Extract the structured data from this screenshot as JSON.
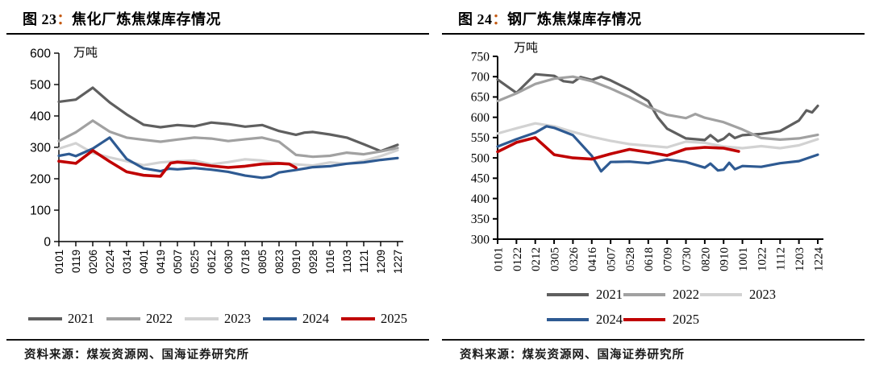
{
  "figures": [
    {
      "title_prefix": "图 23",
      "title_colon": "：",
      "title_text": "焦化厂炼焦煤库存情况",
      "source": "资料来源：煤炭资源网、国海证券研究所",
      "legend_rows": [
        [
          "2021",
          "2022",
          "2023",
          "2024",
          "2025"
        ]
      ],
      "chart_data": {
        "type": "line",
        "title": "焦化厂炼焦煤库存情况",
        "unit": "万吨",
        "ylim": [
          0,
          600
        ],
        "ystep": 100,
        "grid": false,
        "legend_position": "bottom",
        "x_tick_labels": [
          "0101",
          "0119",
          "0206",
          "0224",
          "0314",
          "0401",
          "0419",
          "0507",
          "0525",
          "0612",
          "0630",
          "0718",
          "0805",
          "0823",
          "0910",
          "0928",
          "1016",
          "1103",
          "1121",
          "1209",
          "1227"
        ],
        "series": [
          {
            "name": "2021",
            "color": "#5f5f5f",
            "width": 3.2,
            "points": [
              [
                0,
                445
              ],
              [
                1,
                452
              ],
              [
                2,
                490
              ],
              [
                3,
                443
              ],
              [
                4,
                405
              ],
              [
                5,
                372
              ],
              [
                6,
                364
              ],
              [
                7,
                371
              ],
              [
                8,
                367
              ],
              [
                9,
                379
              ],
              [
                10,
                374
              ],
              [
                11,
                366
              ],
              [
                12,
                371
              ],
              [
                13,
                352
              ],
              [
                14,
                340
              ],
              [
                14.5,
                347
              ],
              [
                15,
                349
              ],
              [
                16,
                341
              ],
              [
                17,
                331
              ],
              [
                18,
                310
              ],
              [
                19,
                288
              ],
              [
                20,
                308
              ]
            ]
          },
          {
            "name": "2022",
            "color": "#a1a1a1",
            "width": 3.2,
            "points": [
              [
                0,
                320
              ],
              [
                1,
                348
              ],
              [
                2,
                385
              ],
              [
                3,
                350
              ],
              [
                4,
                331
              ],
              [
                5,
                324
              ],
              [
                6,
                318
              ],
              [
                7,
                325
              ],
              [
                8,
                331
              ],
              [
                9,
                328
              ],
              [
                10,
                320
              ],
              [
                11,
                326
              ],
              [
                12,
                331
              ],
              [
                13,
                318
              ],
              [
                14,
                276
              ],
              [
                15,
                270
              ],
              [
                16,
                273
              ],
              [
                17,
                283
              ],
              [
                18,
                278
              ],
              [
                19,
                287
              ],
              [
                20,
                298
              ]
            ]
          },
          {
            "name": "2023",
            "color": "#d2d2d2",
            "width": 3.2,
            "points": [
              [
                0,
                296
              ],
              [
                1,
                313
              ],
              [
                2,
                282
              ],
              [
                3,
                268
              ],
              [
                4,
                256
              ],
              [
                5,
                243
              ],
              [
                6,
                252
              ],
              [
                7,
                256
              ],
              [
                8,
                258
              ],
              [
                9,
                246
              ],
              [
                10,
                253
              ],
              [
                11,
                262
              ],
              [
                12,
                258
              ],
              [
                13,
                250
              ],
              [
                14,
                246
              ],
              [
                15,
                242
              ],
              [
                16,
                252
              ],
              [
                17,
                248
              ],
              [
                18,
                257
              ],
              [
                19,
                272
              ],
              [
                20,
                291
              ]
            ]
          },
          {
            "name": "2024",
            "color": "#2e5a92",
            "width": 3.2,
            "points": [
              [
                0,
                273
              ],
              [
                0.6,
                279
              ],
              [
                1,
                272
              ],
              [
                2,
                296
              ],
              [
                3,
                331
              ],
              [
                4,
                263
              ],
              [
                5,
                233
              ],
              [
                6,
                224
              ],
              [
                6.5,
                232
              ],
              [
                7,
                230
              ],
              [
                8,
                234
              ],
              [
                9,
                229
              ],
              [
                10,
                222
              ],
              [
                11,
                210
              ],
              [
                12,
                203
              ],
              [
                12.5,
                207
              ],
              [
                13,
                220
              ],
              [
                14,
                228
              ],
              [
                15,
                237
              ],
              [
                16,
                240
              ],
              [
                17,
                248
              ],
              [
                18,
                252
              ],
              [
                19,
                260
              ],
              [
                20,
                266
              ]
            ]
          },
          {
            "name": "2025",
            "color": "#c00000",
            "width": 3.6,
            "points": [
              [
                0,
                256
              ],
              [
                1,
                249
              ],
              [
                2,
                290
              ],
              [
                3,
                255
              ],
              [
                4,
                222
              ],
              [
                5,
                211
              ],
              [
                6,
                208
              ],
              [
                6.6,
                250
              ],
              [
                7,
                253
              ],
              [
                8,
                249
              ],
              [
                9,
                241
              ],
              [
                10,
                236
              ],
              [
                11,
                240
              ],
              [
                12,
                247
              ],
              [
                13,
                249
              ],
              [
                13.6,
                247
              ],
              [
                14,
                235
              ]
            ]
          }
        ]
      }
    },
    {
      "title_prefix": "图 24",
      "title_colon": "：",
      "title_text": "钢厂炼焦煤库存情况",
      "source": "资料来源：煤炭资源网、国海证券研究所",
      "legend_rows": [
        [
          "2021",
          "2022",
          "2023"
        ],
        [
          "2024",
          "2025"
        ]
      ],
      "chart_data": {
        "type": "line",
        "title": "钢厂炼焦煤库存情况",
        "unit": "万吨",
        "ylim": [
          300,
          750
        ],
        "ystep": 50,
        "grid": false,
        "legend_position": "bottom",
        "x_tick_labels": [
          "0101",
          "0122",
          "0212",
          "0305",
          "0326",
          "0416",
          "0507",
          "0528",
          "0618",
          "0709",
          "0730",
          "0820",
          "0910",
          "1001",
          "1022",
          "1112",
          "1203",
          "1224"
        ],
        "series": [
          {
            "name": "2021",
            "color": "#5f5f5f",
            "width": 3.2,
            "points": [
              [
                0,
                693
              ],
              [
                1,
                660
              ],
              [
                2,
                706
              ],
              [
                3,
                702
              ],
              [
                3.5,
                689
              ],
              [
                4,
                686
              ],
              [
                4.4,
                699
              ],
              [
                5,
                692
              ],
              [
                5.5,
                700
              ],
              [
                6,
                691
              ],
              [
                7,
                668
              ],
              [
                8,
                640
              ],
              [
                8.5,
                600
              ],
              [
                9,
                572
              ],
              [
                10,
                548
              ],
              [
                11,
                544
              ],
              [
                11.3,
                556
              ],
              [
                11.7,
                541
              ],
              [
                12,
                547
              ],
              [
                12.3,
                559
              ],
              [
                12.6,
                549
              ],
              [
                13,
                556
              ],
              [
                14,
                559
              ],
              [
                15,
                566
              ],
              [
                16,
                592
              ],
              [
                16.4,
                617
              ],
              [
                16.7,
                612
              ],
              [
                17,
                628
              ]
            ]
          },
          {
            "name": "2022",
            "color": "#a1a1a1",
            "width": 3.2,
            "points": [
              [
                0,
                640
              ],
              [
                1,
                659
              ],
              [
                2,
                682
              ],
              [
                3,
                695
              ],
              [
                4,
                700
              ],
              [
                5,
                689
              ],
              [
                6,
                671
              ],
              [
                7,
                650
              ],
              [
                8,
                626
              ],
              [
                9,
                606
              ],
              [
                10,
                598
              ],
              [
                10.5,
                608
              ],
              [
                11,
                599
              ],
              [
                12,
                588
              ],
              [
                13,
                570
              ],
              [
                14,
                549
              ],
              [
                15,
                545
              ],
              [
                16,
                548
              ],
              [
                17,
                557
              ]
            ]
          },
          {
            "name": "2023",
            "color": "#d2d2d2",
            "width": 3.2,
            "points": [
              [
                0,
                560
              ],
              [
                1,
                573
              ],
              [
                2,
                585
              ],
              [
                3,
                578
              ],
              [
                4,
                564
              ],
              [
                5,
                552
              ],
              [
                6,
                542
              ],
              [
                7,
                534
              ],
              [
                8,
                530
              ],
              [
                9,
                526
              ],
              [
                10,
                540
              ],
              [
                11,
                537
              ],
              [
                12,
                528
              ],
              [
                13,
                524
              ],
              [
                14,
                529
              ],
              [
                15,
                524
              ],
              [
                16,
                531
              ],
              [
                17,
                546
              ]
            ]
          },
          {
            "name": "2024",
            "color": "#2e5a92",
            "width": 3.2,
            "points": [
              [
                0,
                528
              ],
              [
                1,
                546
              ],
              [
                2,
                562
              ],
              [
                2.6,
                578
              ],
              [
                3,
                574
              ],
              [
                4,
                556
              ],
              [
                5,
                505
              ],
              [
                5.5,
                467
              ],
              [
                6,
                490
              ],
              [
                7,
                491
              ],
              [
                8,
                487
              ],
              [
                9,
                496
              ],
              [
                10,
                490
              ],
              [
                11,
                476
              ],
              [
                11.3,
                486
              ],
              [
                11.7,
                469
              ],
              [
                12,
                471
              ],
              [
                12.3,
                488
              ],
              [
                12.6,
                472
              ],
              [
                13,
                480
              ],
              [
                14,
                478
              ],
              [
                15,
                487
              ],
              [
                16,
                492
              ],
              [
                17,
                508
              ]
            ]
          },
          {
            "name": "2025",
            "color": "#c00000",
            "width": 3.6,
            "points": [
              [
                0,
                515
              ],
              [
                1,
                538
              ],
              [
                2,
                550
              ],
              [
                3,
                508
              ],
              [
                4,
                500
              ],
              [
                5,
                497
              ],
              [
                6,
                510
              ],
              [
                7,
                521
              ],
              [
                8,
                514
              ],
              [
                9,
                506
              ],
              [
                10,
                522
              ],
              [
                11,
                526
              ],
              [
                12,
                524
              ],
              [
                12.8,
                516
              ]
            ]
          }
        ]
      }
    }
  ],
  "colors": {
    "title_colon_accent": "#c45911",
    "axis": "#000000",
    "series": {
      "2021": "#5f5f5f",
      "2022": "#a1a1a1",
      "2023": "#d2d2d2",
      "2024": "#2e5a92",
      "2025": "#c00000"
    }
  }
}
